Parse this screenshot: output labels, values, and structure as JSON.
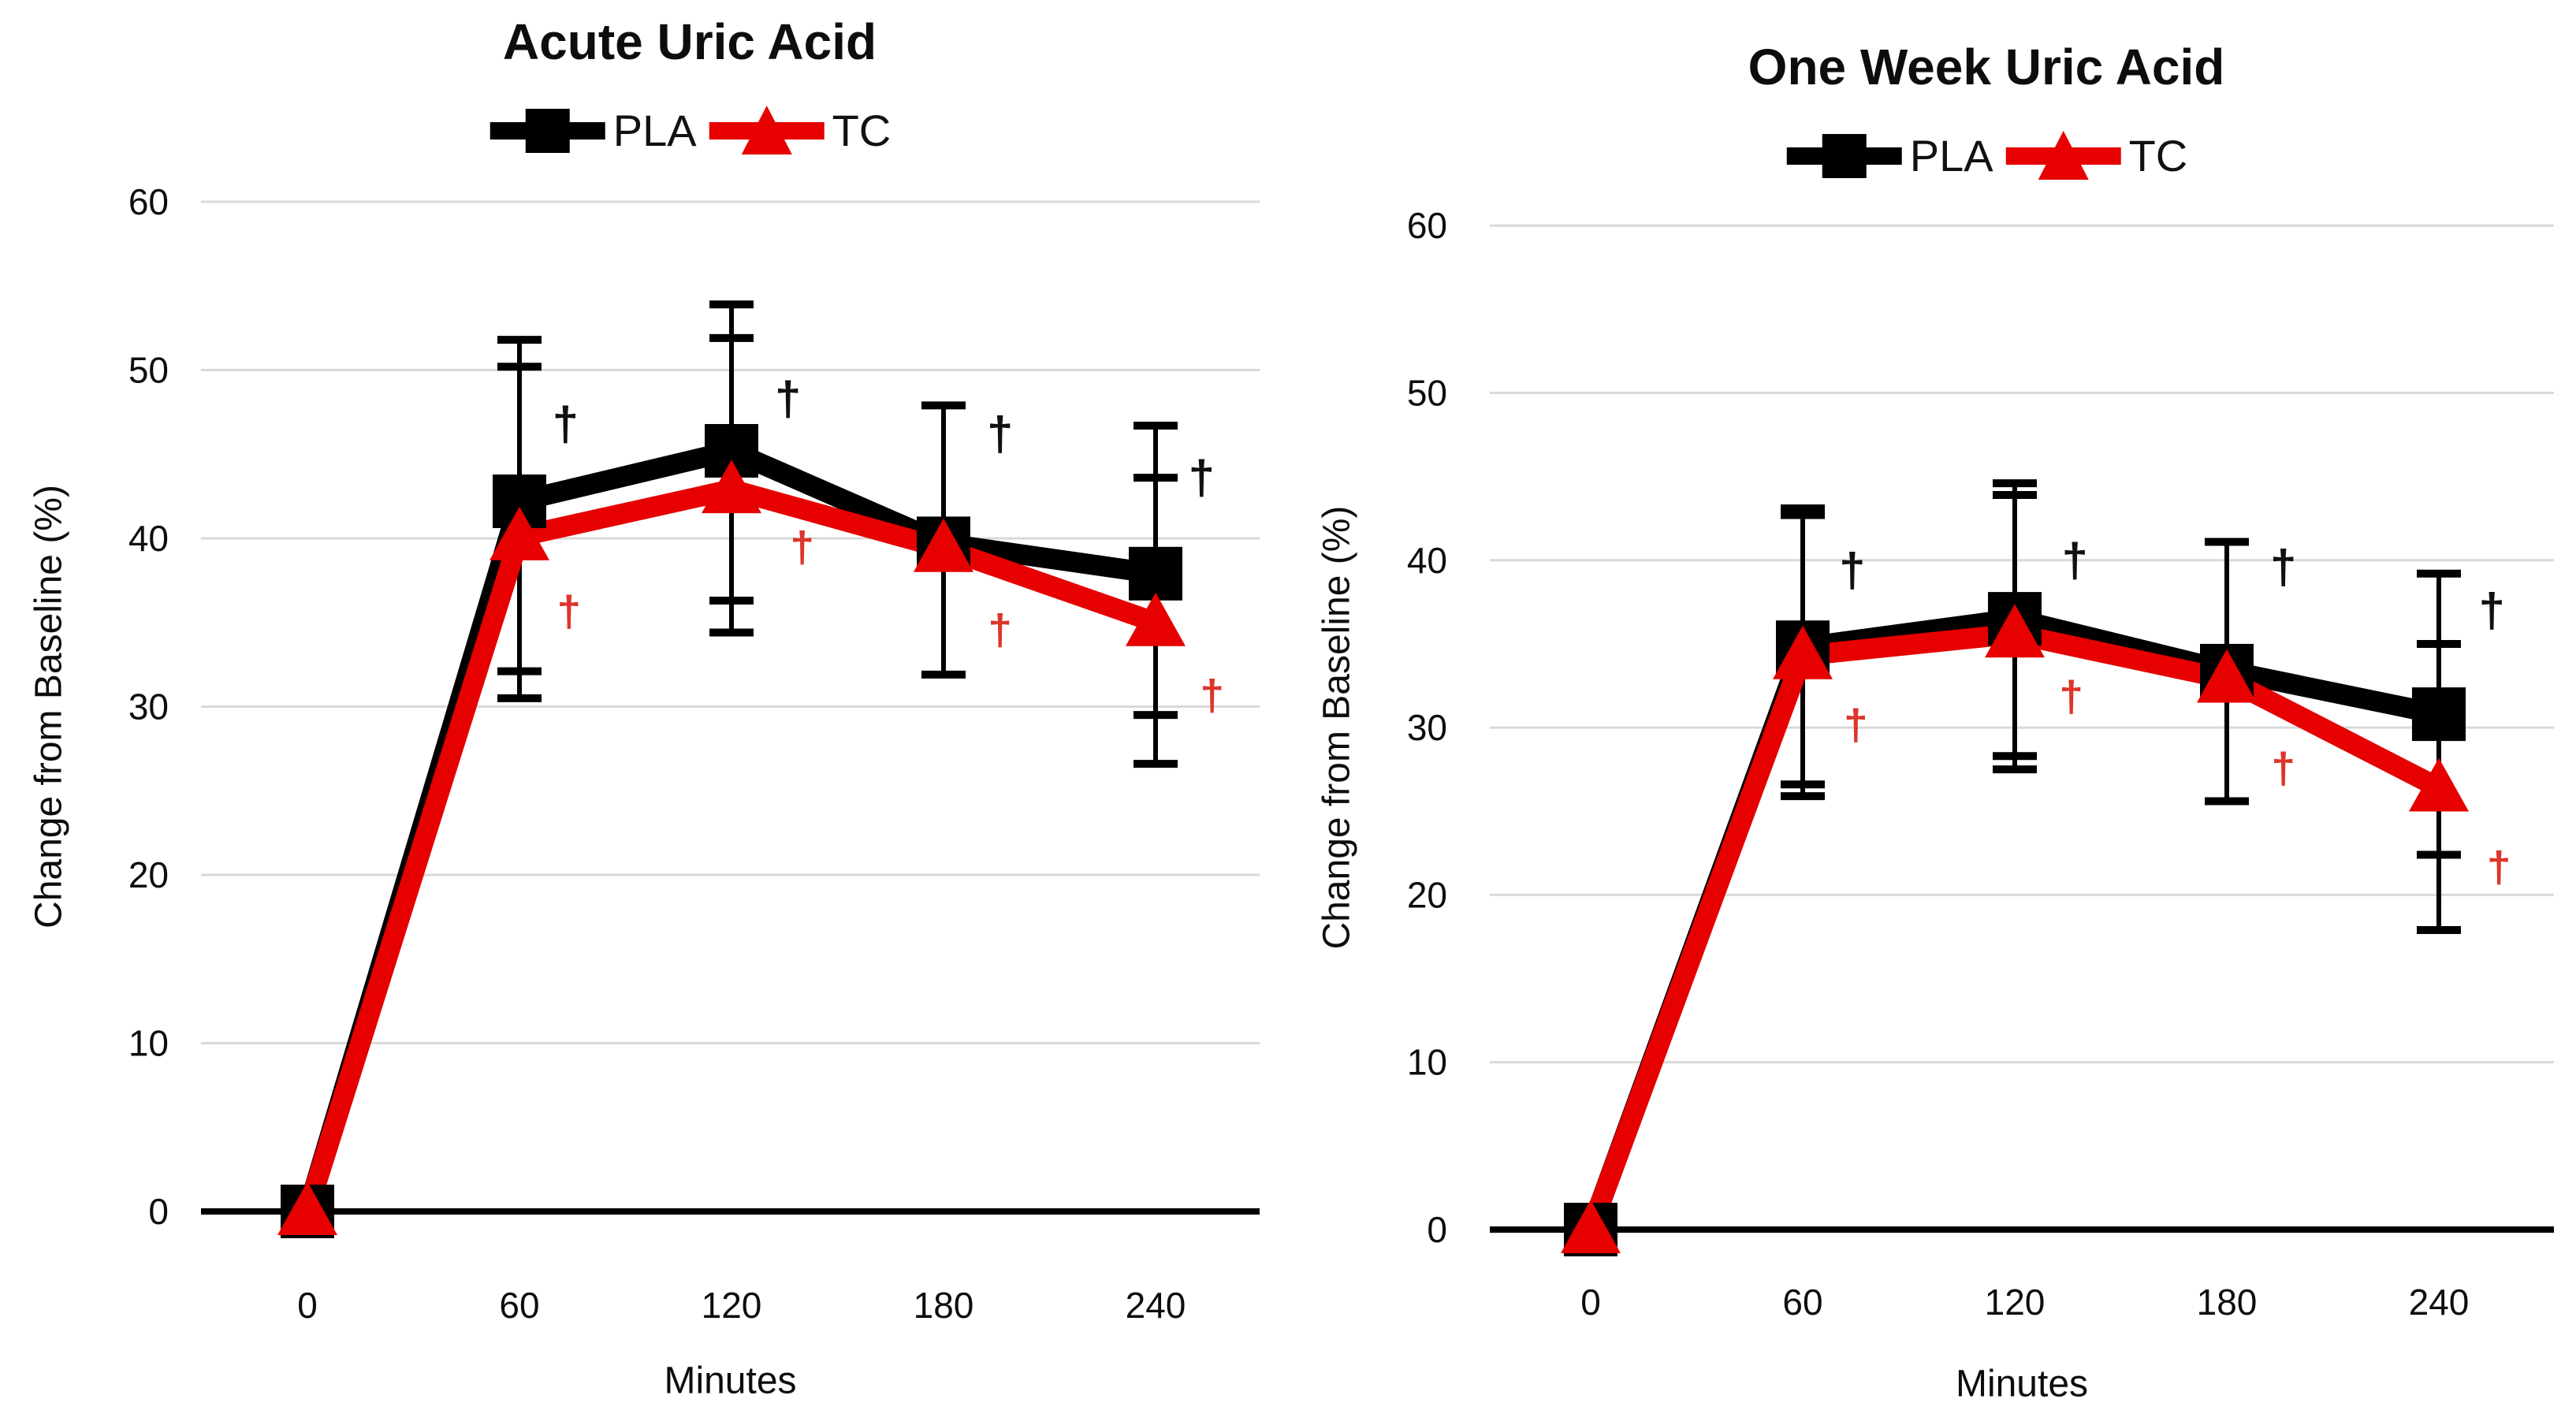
{
  "figure": {
    "background": "#ffffff",
    "legend_labels": {
      "pla": "PLA",
      "tc": "TC"
    }
  },
  "colors": {
    "pla_series": "#000000",
    "tc_series": "#e60000",
    "gridline": "#d9d9d9",
    "axis": "#000000",
    "black_dagger": "#111111",
    "red_dagger": "#dd352b",
    "text": "#0d0d0d"
  },
  "chart_data": [
    {
      "type": "line",
      "title": "Acute Uric Acid",
      "xlabel": "Minutes",
      "ylabel": "Change from Baseline (%)",
      "x_ticks": [
        0,
        60,
        120,
        180,
        240
      ],
      "y_ticks": [
        0,
        10,
        20,
        30,
        40,
        50,
        60
      ],
      "ylim": [
        0,
        60
      ],
      "grid": "horizontal",
      "legend_position": "top-center",
      "x": [
        0,
        60,
        120,
        180,
        240
      ],
      "series": [
        {
          "name": "PLA",
          "marker": "square",
          "color": "#000000",
          "y": [
            0,
            42.2,
            45.2,
            39.7,
            37.9
          ],
          "err_high": [
            null,
            51.8,
            53.9,
            47.9,
            46.7
          ],
          "err_low": [
            null,
            32.1,
            36.3,
            31.9,
            29.5
          ]
        },
        {
          "name": "TC",
          "marker": "triangle",
          "color": "#e60000",
          "y": [
            0,
            40.1,
            42.9,
            39.4,
            35.0
          ],
          "err_high": [
            null,
            50.2,
            51.9,
            null,
            43.6
          ],
          "err_low": [
            null,
            30.5,
            34.4,
            null,
            26.6
          ]
        }
      ],
      "annotations": {
        "symbol": "†",
        "black": [
          {
            "x": 73,
            "y": 46.8
          },
          {
            "x": 136,
            "y": 48.3
          },
          {
            "x": 196,
            "y": 46.2
          },
          {
            "x": 253,
            "y": 43.6
          }
        ],
        "red": [
          {
            "x": 74,
            "y": 35.7
          },
          {
            "x": 140,
            "y": 39.5
          },
          {
            "x": 196,
            "y": 34.6
          },
          {
            "x": 256,
            "y": 30.7
          }
        ]
      }
    },
    {
      "type": "line",
      "title": "One Week Uric Acid",
      "xlabel": "Minutes",
      "ylabel": "Change from Baseline (%)",
      "x_ticks": [
        0,
        60,
        120,
        180,
        240
      ],
      "y_ticks": [
        0,
        10,
        20,
        30,
        40,
        50,
        60
      ],
      "ylim": [
        0,
        60
      ],
      "grid": "horizontal",
      "legend_position": "top-center",
      "x": [
        0,
        60,
        120,
        180,
        240
      ],
      "series": [
        {
          "name": "PLA",
          "marker": "square",
          "color": "#000000",
          "y": [
            0,
            34.8,
            36.5,
            33.4,
            30.8
          ],
          "err_high": [
            null,
            43.1,
            44.6,
            41.1,
            39.2
          ],
          "err_low": [
            null,
            26.6,
            28.3,
            25.6,
            22.4
          ]
        },
        {
          "name": "TC",
          "marker": "triangle",
          "color": "#e60000",
          "y": [
            0,
            34.3,
            35.6,
            32.9,
            26.4
          ],
          "err_high": [
            null,
            42.7,
            43.9,
            null,
            35.0
          ],
          "err_low": [
            null,
            25.9,
            27.5,
            null,
            17.9
          ]
        }
      ],
      "annotations": {
        "symbol": "†",
        "black": [
          {
            "x": 74,
            "y": 39.4
          },
          {
            "x": 137,
            "y": 40.0
          },
          {
            "x": 196,
            "y": 39.6
          },
          {
            "x": 255,
            "y": 37.0
          }
        ],
        "red": [
          {
            "x": 75,
            "y": 30.2
          },
          {
            "x": 136,
            "y": 31.9
          },
          {
            "x": 196,
            "y": 27.6
          },
          {
            "x": 257,
            "y": 21.7
          }
        ]
      }
    }
  ]
}
